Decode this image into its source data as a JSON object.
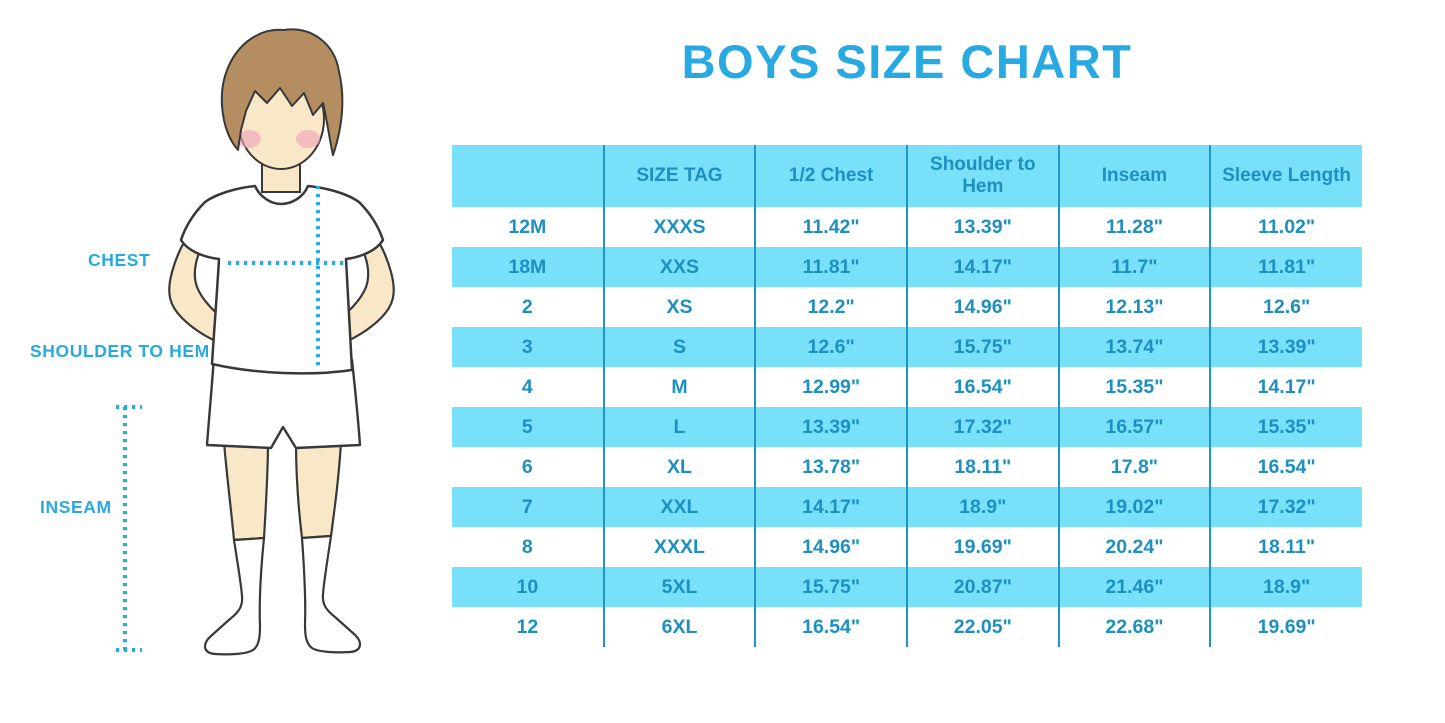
{
  "title": "BOYS SIZE CHART",
  "colors": {
    "accent": "#29a9e1",
    "tableFill": "#79e0fa",
    "tableText": "#1d8fc1",
    "tableBorder": "#2094c6",
    "skin": "#f9e8c8",
    "hair": "#b48e60",
    "blush": "#f0a6bb",
    "outline": "#383838"
  },
  "figure": {
    "labels": {
      "chest": "CHEST",
      "shoulder_to_hem": "SHOULDER TO HEM",
      "inseam": "INSEAM"
    }
  },
  "table": {
    "columns": [
      "",
      "SIZE TAG",
      "1/2 Chest",
      "Shoulder to Hem",
      "Inseam",
      "Sleeve Length"
    ],
    "rows": [
      [
        "12M",
        "XXXS",
        "11.42\"",
        "13.39\"",
        "11.28\"",
        "11.02\""
      ],
      [
        "18M",
        "XXS",
        "11.81\"",
        "14.17\"",
        "11.7\"",
        "11.81\""
      ],
      [
        "2",
        "XS",
        "12.2\"",
        "14.96\"",
        "12.13\"",
        "12.6\""
      ],
      [
        "3",
        "S",
        "12.6\"",
        "15.75\"",
        "13.74\"",
        "13.39\""
      ],
      [
        "4",
        "M",
        "12.99\"",
        "16.54\"",
        "15.35\"",
        "14.17\""
      ],
      [
        "5",
        "L",
        "13.39\"",
        "17.32\"",
        "16.57\"",
        "15.35\""
      ],
      [
        "6",
        "XL",
        "13.78\"",
        "18.11\"",
        "17.8\"",
        "16.54\""
      ],
      [
        "7",
        "XXL",
        "14.17\"",
        "18.9\"",
        "19.02\"",
        "17.32\""
      ],
      [
        "8",
        "XXXL",
        "14.96\"",
        "19.69\"",
        "20.24\"",
        "18.11\""
      ],
      [
        "10",
        "5XL",
        "15.75\"",
        "20.87\"",
        "21.46\"",
        "18.9\""
      ],
      [
        "12",
        "6XL",
        "16.54\"",
        "22.05\"",
        "22.68\"",
        "19.69\""
      ]
    ]
  }
}
